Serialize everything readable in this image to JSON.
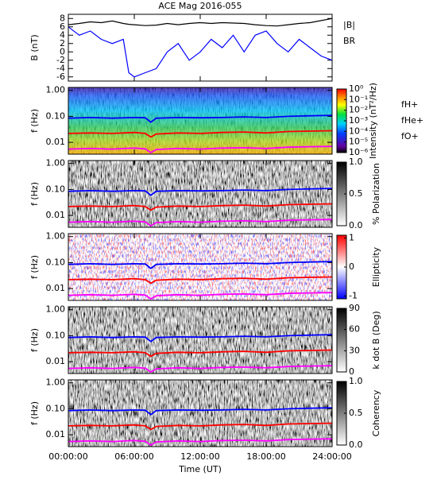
{
  "chart_data": [
    {
      "type": "line",
      "title": "ACE Mag 2016-055",
      "ylabel": "B (nT)",
      "x": [
        0,
        1,
        2,
        3,
        4,
        5,
        5.5,
        6,
        7,
        8,
        9,
        10,
        11,
        12,
        13,
        14,
        15,
        16,
        17,
        18,
        19,
        20,
        21,
        22,
        23,
        24
      ],
      "xlim": [
        0,
        24
      ],
      "ylim": [
        -7,
        9
      ],
      "yticks": [
        -6,
        -4,
        -2,
        0,
        2,
        4,
        6,
        8
      ],
      "series": [
        {
          "name": "|B|",
          "color": "#000000",
          "values": [
            6.5,
            6.8,
            7.2,
            7,
            7.4,
            6.8,
            6.6,
            6.5,
            6.3,
            6.4,
            6.8,
            6.5,
            6.8,
            7,
            6.8,
            7,
            6.9,
            6.8,
            6.5,
            6.3,
            6.2,
            6.5,
            6.8,
            7,
            7.5,
            8
          ]
        },
        {
          "name": "BR",
          "color": "#0000ff",
          "values": [
            6,
            4,
            5,
            3,
            2,
            3,
            -5,
            -6,
            -5,
            -4,
            0,
            2,
            -2,
            0,
            3,
            1,
            4,
            0,
            4,
            5,
            2,
            0,
            3,
            1,
            -1,
            -2
          ]
        }
      ]
    },
    {
      "type": "spectrogram",
      "ylabel": "f (Hz)",
      "log_y": true,
      "x": [
        0,
        2,
        4,
        6,
        7,
        7.5,
        8,
        10,
        12,
        14,
        16,
        18,
        20,
        22,
        24
      ],
      "xlim": [
        0,
        24
      ],
      "ylim": [
        0.0035,
        1.3
      ],
      "yticks": [
        {
          "value": 0.01,
          "label": "0.01"
        },
        {
          "value": 0.1,
          "label": "0.10"
        },
        {
          "value": 1,
          "label": "1.00"
        }
      ],
      "colorbar": {
        "label": "Intensity (nT²/Hz)",
        "log": true,
        "lim": [
          1e-06,
          1
        ],
        "ticks": [
          {
            "value": 1,
            "label": "10⁰"
          },
          {
            "value": 0.1,
            "label": "10⁻¹"
          },
          {
            "value": 0.01,
            "label": "10⁻²"
          },
          {
            "value": 0.001,
            "label": "10⁻³"
          },
          {
            "value": 0.0001,
            "label": "10⁻⁴"
          },
          {
            "value": 1e-05,
            "label": "10⁻⁵"
          },
          {
            "value": 1e-06,
            "label": "10⁻⁶"
          }
        ]
      },
      "series": [
        {
          "name": "fH+",
          "color": "#0000ff",
          "values": [
            0.085,
            0.09,
            0.085,
            0.09,
            0.088,
            0.06,
            0.085,
            0.09,
            0.088,
            0.09,
            0.095,
            0.09,
            0.1,
            0.105,
            0.11
          ]
        },
        {
          "name": "fHe+",
          "color": "#ff0000",
          "values": [
            0.022,
            0.023,
            0.022,
            0.024,
            0.022,
            0.016,
            0.021,
            0.023,
            0.022,
            0.024,
            0.025,
            0.023,
            0.026,
            0.027,
            0.028
          ]
        },
        {
          "name": "fO+",
          "color": "#ff00ff",
          "values": [
            0.0055,
            0.0058,
            0.0055,
            0.006,
            0.0056,
            0.004,
            0.0053,
            0.0058,
            0.0055,
            0.006,
            0.0062,
            0.0058,
            0.0065,
            0.0068,
            0.007
          ]
        }
      ]
    },
    {
      "type": "spectrogram",
      "ylabel": "f (Hz)",
      "log_y": true,
      "x": [
        0,
        2,
        4,
        6,
        7,
        7.5,
        8,
        10,
        12,
        14,
        16,
        18,
        20,
        22,
        24
      ],
      "xlim": [
        0,
        24
      ],
      "ylim": [
        0.0035,
        1.3
      ],
      "yticks": [
        {
          "value": 0.01,
          "label": "0.01"
        },
        {
          "value": 0.1,
          "label": "0.10"
        },
        {
          "value": 1,
          "label": "1.00"
        }
      ],
      "colorbar": {
        "label": "% Polarization",
        "log": false,
        "lim": [
          0,
          1
        ],
        "ticks": [
          {
            "value": 0,
            "label": "0.0"
          },
          {
            "value": 0.5,
            "label": "0.5"
          },
          {
            "value": 1,
            "label": "1.0"
          }
        ]
      },
      "series": [
        {
          "color": "#0000ff",
          "values": [
            0.085,
            0.09,
            0.085,
            0.09,
            0.088,
            0.06,
            0.085,
            0.09,
            0.088,
            0.09,
            0.095,
            0.09,
            0.1,
            0.105,
            0.11
          ]
        },
        {
          "color": "#ff0000",
          "values": [
            0.022,
            0.023,
            0.022,
            0.024,
            0.022,
            0.016,
            0.021,
            0.023,
            0.022,
            0.024,
            0.025,
            0.023,
            0.026,
            0.027,
            0.028
          ]
        },
        {
          "color": "#ff00ff",
          "values": [
            0.0055,
            0.0058,
            0.0055,
            0.006,
            0.0056,
            0.004,
            0.0053,
            0.0058,
            0.0055,
            0.006,
            0.0062,
            0.0058,
            0.0065,
            0.0068,
            0.007
          ]
        }
      ]
    },
    {
      "type": "spectrogram",
      "ylabel": "f (Hz)",
      "log_y": true,
      "x": [
        0,
        2,
        4,
        6,
        7,
        7.5,
        8,
        10,
        12,
        14,
        16,
        18,
        20,
        22,
        24
      ],
      "xlim": [
        0,
        24
      ],
      "ylim": [
        0.0035,
        1.3
      ],
      "yticks": [
        {
          "value": 0.01,
          "label": "0.01"
        },
        {
          "value": 0.1,
          "label": "0.10"
        },
        {
          "value": 1,
          "label": "1.00"
        }
      ],
      "colorbar": {
        "label": "Ellipticity",
        "log": false,
        "lim": [
          -1.1,
          1.1
        ],
        "ticks": [
          -1,
          0,
          1
        ]
      },
      "series": [
        {
          "color": "#0000ff",
          "values": [
            0.085,
            0.09,
            0.085,
            0.09,
            0.088,
            0.06,
            0.085,
            0.09,
            0.088,
            0.09,
            0.095,
            0.09,
            0.1,
            0.105,
            0.11
          ]
        },
        {
          "color": "#ff0000",
          "values": [
            0.022,
            0.023,
            0.022,
            0.024,
            0.022,
            0.016,
            0.021,
            0.023,
            0.022,
            0.024,
            0.025,
            0.023,
            0.026,
            0.027,
            0.028
          ]
        },
        {
          "color": "#ff00ff",
          "values": [
            0.0055,
            0.0058,
            0.0055,
            0.006,
            0.0056,
            0.004,
            0.0053,
            0.0058,
            0.0055,
            0.006,
            0.0062,
            0.0058,
            0.0065,
            0.0068,
            0.007
          ]
        }
      ]
    },
    {
      "type": "spectrogram",
      "ylabel": "f (Hz)",
      "log_y": true,
      "x": [
        0,
        2,
        4,
        6,
        7,
        7.5,
        8,
        10,
        12,
        14,
        16,
        18,
        20,
        22,
        24
      ],
      "xlim": [
        0,
        24
      ],
      "ylim": [
        0.0035,
        1.3
      ],
      "yticks": [
        {
          "value": 0.01,
          "label": "0.01"
        },
        {
          "value": 0.1,
          "label": "0.10"
        },
        {
          "value": 1,
          "label": "1.00"
        }
      ],
      "colorbar": {
        "label": "k dot B (Deg)",
        "log": false,
        "lim": [
          0,
          90
        ],
        "ticks": [
          0,
          30,
          60,
          90
        ]
      },
      "series": [
        {
          "color": "#0000ff",
          "values": [
            0.085,
            0.09,
            0.085,
            0.09,
            0.088,
            0.06,
            0.085,
            0.09,
            0.088,
            0.09,
            0.095,
            0.09,
            0.1,
            0.105,
            0.11
          ]
        },
        {
          "color": "#ff0000",
          "values": [
            0.022,
            0.023,
            0.022,
            0.024,
            0.022,
            0.016,
            0.021,
            0.023,
            0.022,
            0.024,
            0.025,
            0.023,
            0.026,
            0.027,
            0.028
          ]
        },
        {
          "color": "#ff00ff",
          "values": [
            0.0055,
            0.0058,
            0.0055,
            0.006,
            0.0056,
            0.004,
            0.0053,
            0.0058,
            0.0055,
            0.006,
            0.0062,
            0.0058,
            0.0065,
            0.0068,
            0.007
          ]
        }
      ]
    },
    {
      "type": "spectrogram",
      "ylabel": "f (Hz)",
      "log_y": true,
      "xlabel": "Time (UT)",
      "x": [
        0,
        2,
        4,
        6,
        7,
        7.5,
        8,
        10,
        12,
        14,
        16,
        18,
        20,
        22,
        24
      ],
      "xlim": [
        0,
        24
      ],
      "ylim": [
        0.0035,
        1.3
      ],
      "xticks": [
        {
          "value": 0,
          "label": "00:00:00"
        },
        {
          "value": 6,
          "label": "06:00:00"
        },
        {
          "value": 12,
          "label": "12:00:00"
        },
        {
          "value": 18,
          "label": "18:00:00"
        },
        {
          "value": 24,
          "label": "24:00:00"
        }
      ],
      "yticks": [
        {
          "value": 0.01,
          "label": "0.01"
        },
        {
          "value": 0.1,
          "label": "0.10"
        },
        {
          "value": 1,
          "label": "1.00"
        }
      ],
      "colorbar": {
        "label": "Coherency",
        "log": false,
        "lim": [
          0,
          1
        ],
        "ticks": [
          {
            "value": 0,
            "label": "0.0"
          },
          {
            "value": 0.5,
            "label": "0.5"
          },
          {
            "value": 1,
            "label": "1.0"
          }
        ]
      },
      "series": [
        {
          "color": "#0000ff",
          "values": [
            0.085,
            0.09,
            0.085,
            0.09,
            0.088,
            0.06,
            0.085,
            0.09,
            0.088,
            0.09,
            0.095,
            0.09,
            0.1,
            0.105,
            0.11
          ]
        },
        {
          "color": "#ff0000",
          "values": [
            0.022,
            0.023,
            0.022,
            0.024,
            0.022,
            0.016,
            0.021,
            0.023,
            0.022,
            0.024,
            0.025,
            0.023,
            0.026,
            0.027,
            0.028
          ]
        },
        {
          "color": "#ff00ff",
          "values": [
            0.0055,
            0.0058,
            0.0055,
            0.006,
            0.0056,
            0.004,
            0.0053,
            0.0058,
            0.0055,
            0.006,
            0.0062,
            0.0058,
            0.0065,
            0.0068,
            0.007
          ]
        }
      ]
    }
  ]
}
